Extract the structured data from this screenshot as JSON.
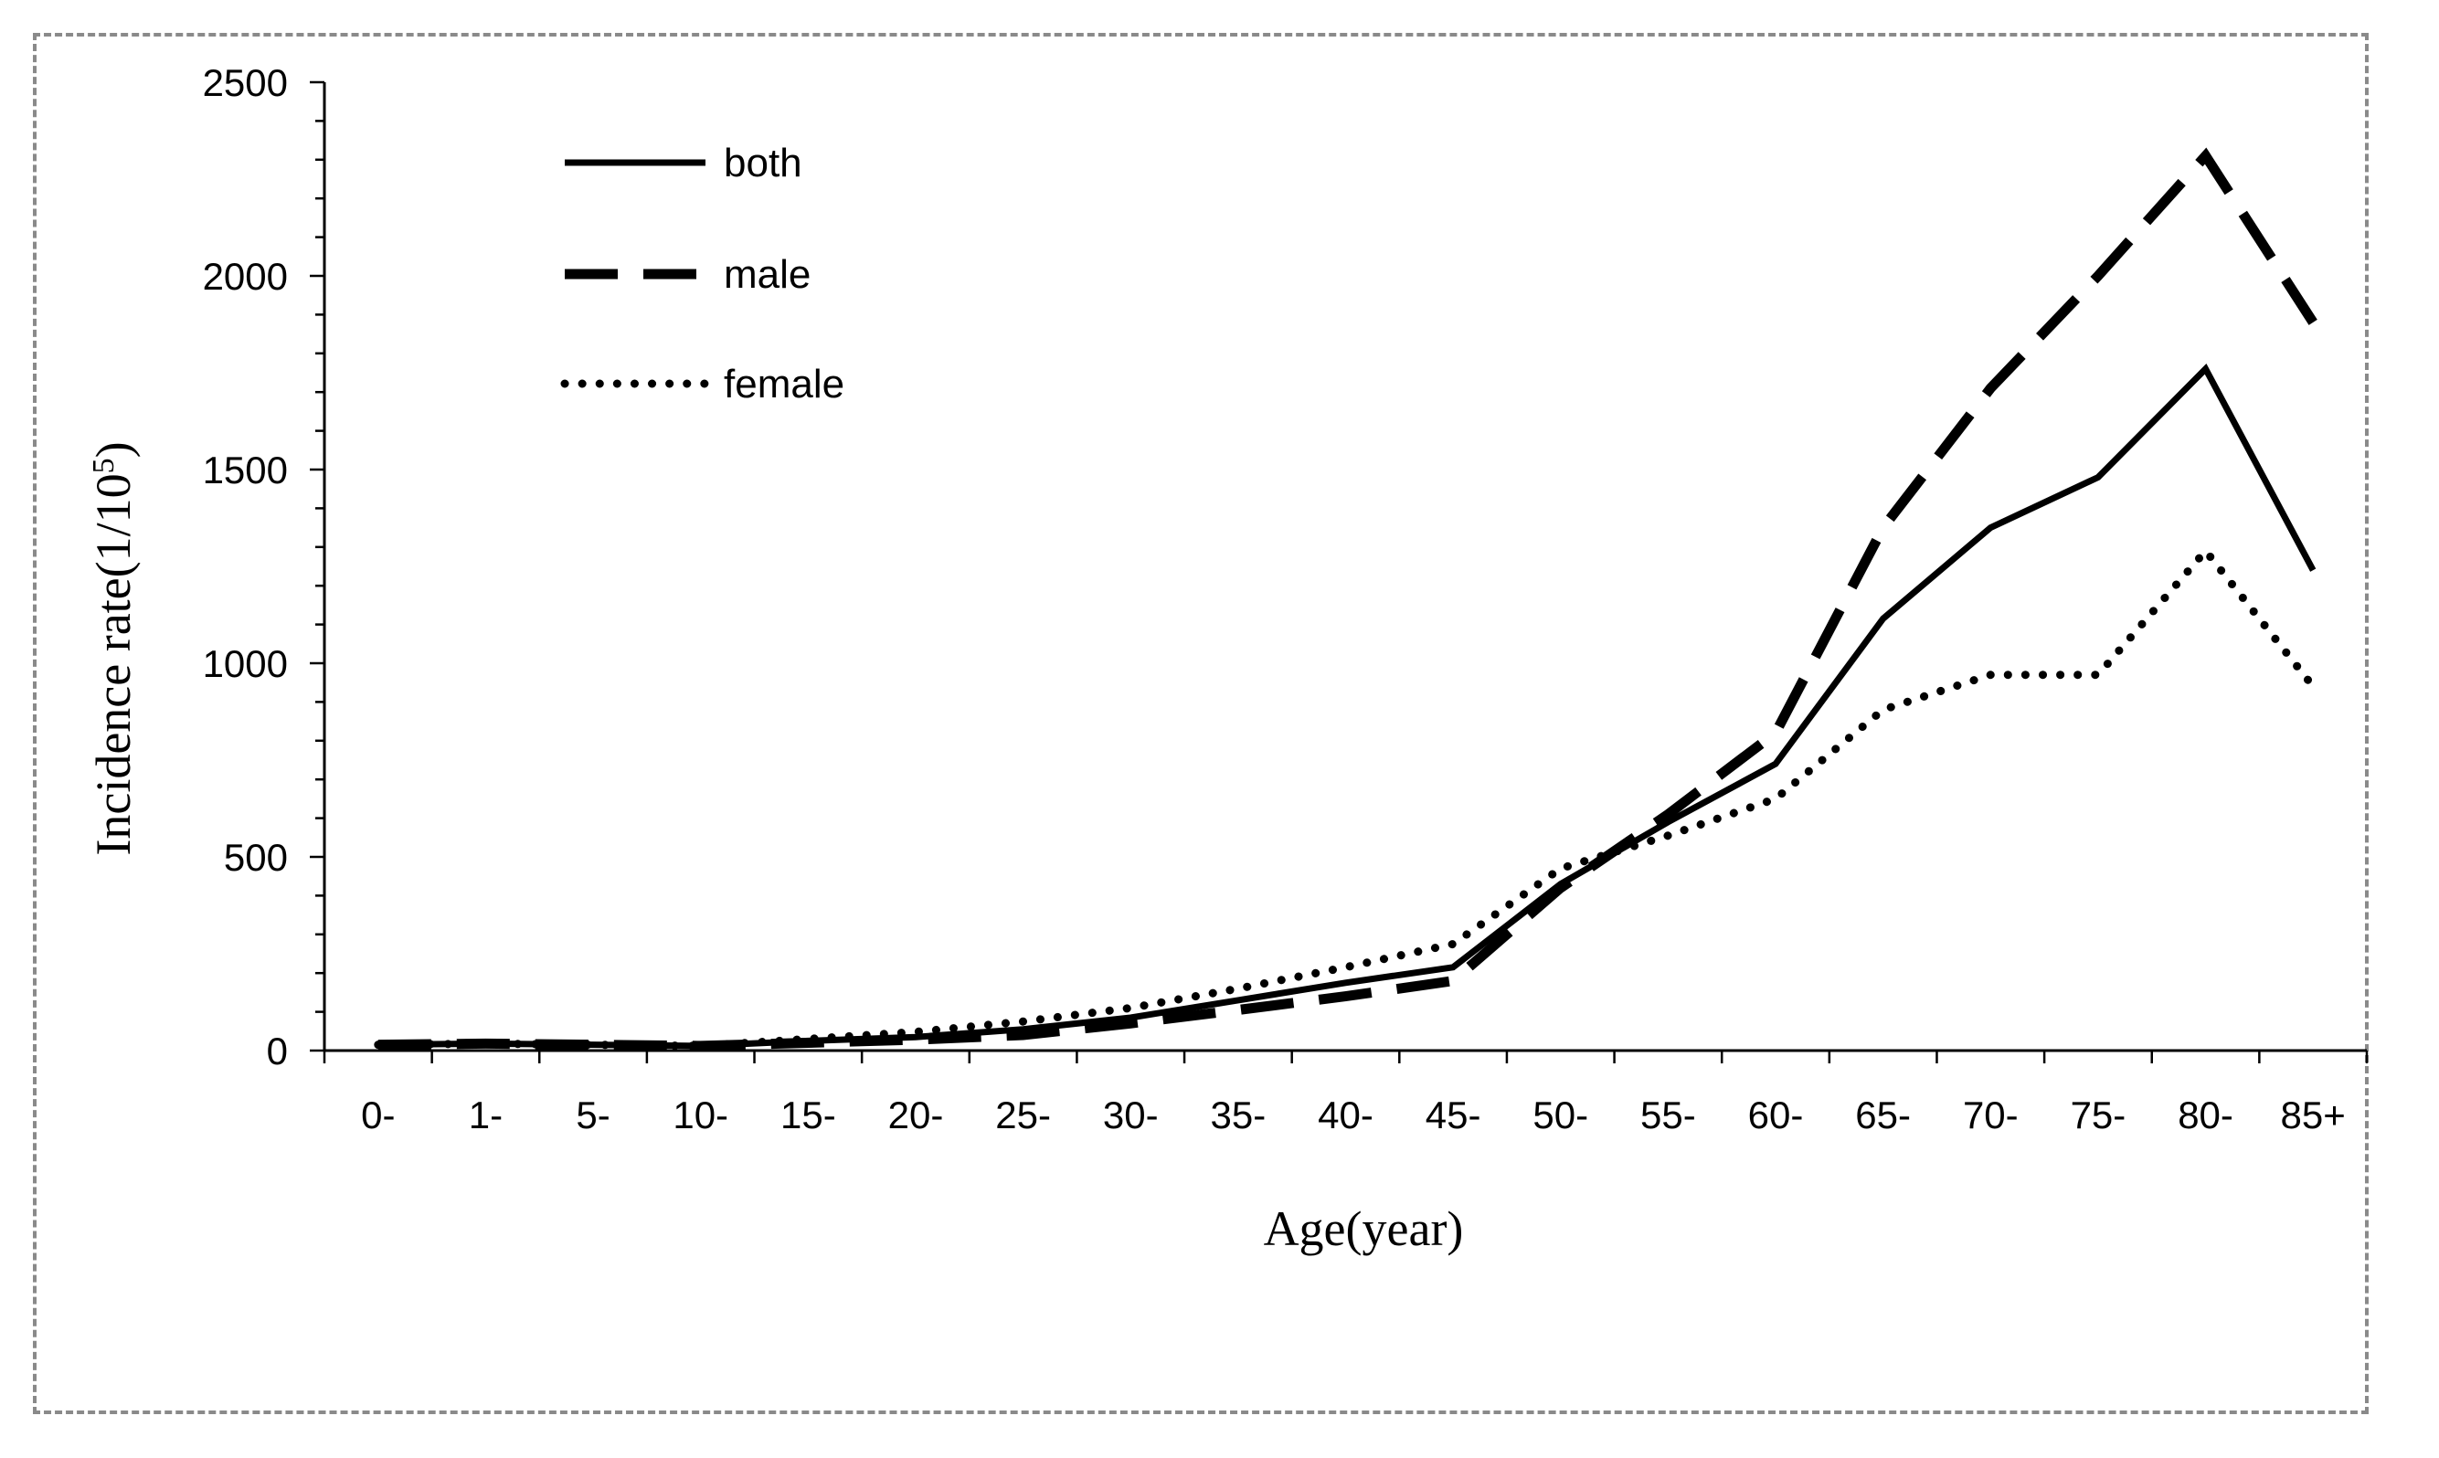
{
  "chart_data": {
    "type": "line",
    "xlabel": "Age(year)",
    "ylabel": "Incidence rate(1/10",
    "ylabel_sup": "5",
    "ylabel_close": ")",
    "ylim": [
      0,
      2500
    ],
    "yticks": [
      0,
      500,
      1000,
      1500,
      2000,
      2500
    ],
    "categories": [
      "0-",
      "1-",
      "5-",
      "10-",
      "15-",
      "20-",
      "25-",
      "30-",
      "35-",
      "40-",
      "45-",
      "50-",
      "55-",
      "60-",
      "65-",
      "70-",
      "75-",
      "80-",
      "85+"
    ],
    "grid": false,
    "legend_position": "top-left",
    "series": [
      {
        "name": "both",
        "style": "solid",
        "color": "#000000",
        "values": [
          15,
          18,
          15,
          12,
          25,
          35,
          55,
          85,
          130,
          175,
          215,
          430,
          590,
          740,
          1115,
          1350,
          1480,
          1760,
          1240
        ]
      },
      {
        "name": "male",
        "style": "dashed",
        "color": "#000000",
        "values": [
          15,
          18,
          15,
          12,
          20,
          28,
          40,
          70,
          105,
          140,
          180,
          420,
          610,
          820,
          1350,
          1710,
          2000,
          2310,
          1880
        ]
      },
      {
        "name": "female",
        "style": "dotted",
        "color": "#000000",
        "values": [
          15,
          18,
          15,
          12,
          30,
          48,
          75,
          110,
          160,
          215,
          275,
          470,
          555,
          650,
          880,
          970,
          970,
          1290,
          940
        ]
      }
    ]
  }
}
